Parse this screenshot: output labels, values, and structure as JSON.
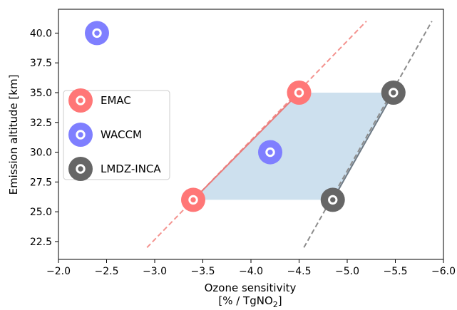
{
  "chart_data": {
    "type": "scatter",
    "xlabel": "Ozone sensitivity",
    "xlabel_line2_prefix": "[% / TgNO",
    "xlabel_line2_sub": "2",
    "xlabel_line2_suffix": "]",
    "ylabel": "Emission altitude [km]",
    "xlim": [
      -2.0,
      -6.0
    ],
    "ylim": [
      21.0,
      42.0
    ],
    "x_ticks": [
      -2.0,
      -2.5,
      -3.0,
      -3.5,
      -4.0,
      -4.5,
      -5.0,
      -5.5,
      -6.0
    ],
    "x_tick_labels": [
      "−2.0",
      "−2.5",
      "−3.0",
      "−3.5",
      "−4.0",
      "−4.5",
      "−5.0",
      "−5.5",
      "−6.0"
    ],
    "y_ticks": [
      22.5,
      25.0,
      27.5,
      30.0,
      32.5,
      35.0,
      37.5,
      40.0
    ],
    "y_tick_labels": [
      "22.5",
      "25.0",
      "27.5",
      "30.0",
      "32.5",
      "35.0",
      "37.5",
      "40.0"
    ],
    "grid": false,
    "legend_position": "center-left",
    "series": [
      {
        "name": "EMAC",
        "color": "#ff7777",
        "points": [
          {
            "x": -3.4,
            "y": 26.0
          },
          {
            "x": -4.5,
            "y": 35.0
          }
        ]
      },
      {
        "name": "WACCM",
        "color": "#7f7fff",
        "points": [
          {
            "x": -2.4,
            "y": 40.0
          },
          {
            "x": -4.2,
            "y": 30.0
          }
        ]
      },
      {
        "name": "LMDZ-INCA",
        "color": "#666666",
        "points": [
          {
            "x": -4.85,
            "y": 26.0
          },
          {
            "x": -5.48,
            "y": 35.0
          }
        ]
      }
    ],
    "solid_lines": [
      {
        "color": "#e87a7a",
        "from": {
          "x": -3.4,
          "y": 26.0
        },
        "to": {
          "x": -4.5,
          "y": 35.0
        }
      },
      {
        "color": "#6f7a84",
        "from": {
          "x": -4.85,
          "y": 26.0
        },
        "to": {
          "x": -5.48,
          "y": 35.0
        }
      }
    ],
    "dashed_lines": [
      {
        "color": "#f4938f",
        "from": {
          "x": -2.92,
          "y": 22.0
        },
        "to": {
          "x": -5.2,
          "y": 41.0
        }
      },
      {
        "color": "#8c8c8c",
        "from": {
          "x": -4.55,
          "y": 22.0
        },
        "to": {
          "x": -5.88,
          "y": 41.0
        }
      }
    ],
    "shaded_region": {
      "color": "#bcd6e8",
      "vertices": [
        {
          "x": -3.4,
          "y": 26.0
        },
        {
          "x": -4.85,
          "y": 26.0
        },
        {
          "x": -5.48,
          "y": 35.0
        },
        {
          "x": -4.5,
          "y": 35.0
        }
      ]
    }
  }
}
